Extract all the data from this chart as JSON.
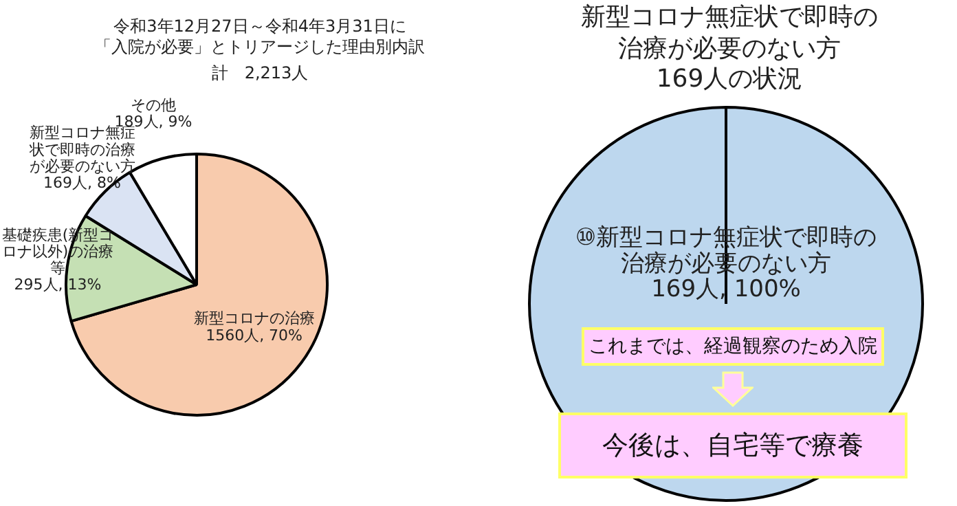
{
  "chart_data": [
    {
      "type": "pie",
      "title": "令和3年12月27日～令和4年3月31日に「入院が必要」とトリアージした理由別内訳",
      "subtitle": "計　2,213人",
      "categories": [
        "新型コロナの治療",
        "基礎疾患(新型コロナ以外)の治療等",
        "新型コロナ無症状で即時の治療が必要のない方",
        "その他"
      ],
      "values": [
        1560,
        295,
        169,
        189
      ],
      "value_labels": [
        "1560人, 70%",
        "295人, 13%",
        "169人, 8%",
        "189人, 9%"
      ],
      "colors": [
        "#f8cbad",
        "#c5e0b4",
        "#dae3f3",
        "#ffffff"
      ],
      "legend": false
    },
    {
      "type": "pie",
      "title": "新型コロナ無症状で即時の治療が必要のない方",
      "subtitle": "169人の状況",
      "categories": [
        "⑩新型コロナ無症状で即時の治療が必要のない方"
      ],
      "values": [
        169
      ],
      "value_labels": [
        "169人, 100%"
      ],
      "colors": [
        "#bdd7ee"
      ],
      "legend": false,
      "annotations": [
        "これまでは、経過観察のため入院",
        "今後は、自宅等で療養"
      ]
    }
  ]
}
